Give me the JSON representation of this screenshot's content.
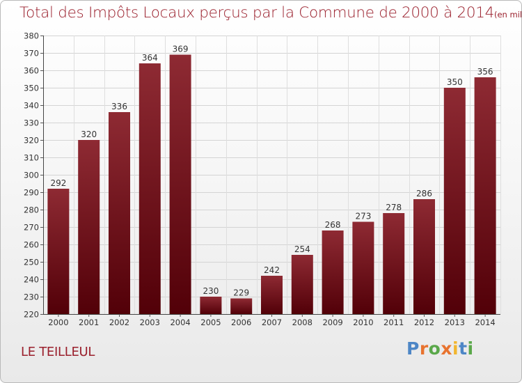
{
  "header": {
    "title": "Total des Impôts Locaux perçus par la Commune de 2000 à 2014",
    "unit": "(en milliers d'€)"
  },
  "footer": {
    "commune": "LE TEILLEUL",
    "logo": "Proxiti"
  },
  "colors": {
    "accent": "#9a1f2c",
    "bar_top": "#8e2a33",
    "bar_bottom": "#520008",
    "logo_letters": [
      "#4d86c6",
      "#e8732f",
      "#5aa84a",
      "#e8732f",
      "#f2b62f",
      "#4d86c6",
      "#5aa84a"
    ]
  },
  "chart_data": {
    "type": "bar",
    "title": "Total des Impôts Locaux perçus par la Commune de 2000 à 2014",
    "ylabel": "",
    "xlabel": "",
    "categories": [
      "2000",
      "2001",
      "2002",
      "2003",
      "2004",
      "2005",
      "2006",
      "2007",
      "2008",
      "2009",
      "2010",
      "2011",
      "2012",
      "2013",
      "2014"
    ],
    "values": [
      292,
      320,
      336,
      364,
      369,
      230,
      229,
      242,
      254,
      268,
      273,
      278,
      286,
      350,
      356
    ],
    "ylim": [
      220,
      380
    ],
    "yticks": [
      220,
      230,
      240,
      250,
      260,
      270,
      280,
      290,
      300,
      310,
      320,
      330,
      340,
      350,
      360,
      370,
      380
    ],
    "grid": true,
    "data_labels": true
  }
}
